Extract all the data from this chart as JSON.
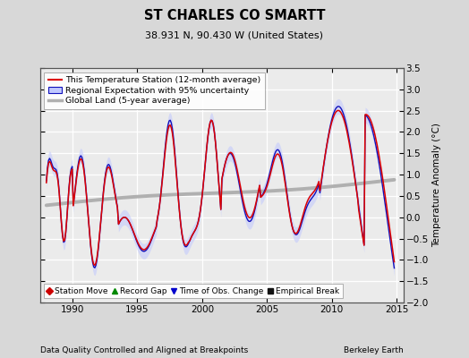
{
  "title": "ST CHARLES CO SMARTTT",
  "title_display": "ST CHARLES CO SMARTT",
  "subtitle": "38.931 N, 90.430 W (United States)",
  "xlabel_left": "Data Quality Controlled and Aligned at Breakpoints",
  "xlabel_right": "Berkeley Earth",
  "ylabel": "Temperature Anomaly (°C)",
  "xlim": [
    1987.5,
    2015.5
  ],
  "ylim": [
    -2.0,
    3.5
  ],
  "yticks": [
    -2,
    -1.5,
    -1,
    -0.5,
    0,
    0.5,
    1,
    1.5,
    2,
    2.5,
    3,
    3.5
  ],
  "xticks": [
    1990,
    1995,
    2000,
    2005,
    2010,
    2015
  ],
  "fig_bg": "#d8d8d8",
  "plot_bg": "#ebebeb",
  "red_color": "#dd0000",
  "blue_color": "#1111bb",
  "blue_fill": "#c0c8ff",
  "gray_color": "#b0b0b0",
  "legend_entries": [
    "This Temperature Station (12-month average)",
    "Regional Expectation with 95% uncertainty",
    "Global Land (5-year average)"
  ],
  "marker_legend": [
    {
      "label": "Station Move",
      "color": "#cc0000",
      "marker": "D"
    },
    {
      "label": "Record Gap",
      "color": "#008800",
      "marker": "^"
    },
    {
      "label": "Time of Obs. Change",
      "color": "#0000cc",
      "marker": "v"
    },
    {
      "label": "Empirical Break",
      "color": "#111111",
      "marker": "s"
    }
  ]
}
